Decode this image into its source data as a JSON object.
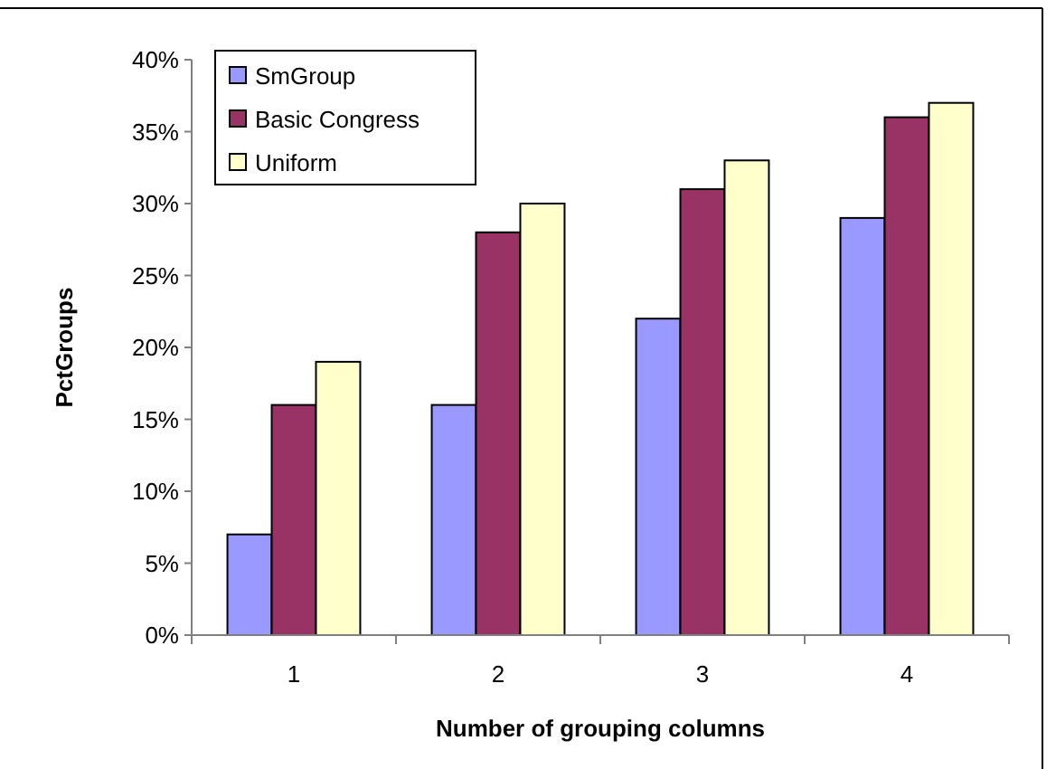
{
  "chart_data": {
    "type": "bar",
    "xlabel": "Number of grouping columns",
    "ylabel": "PctGroups",
    "categories": [
      "1",
      "2",
      "3",
      "4"
    ],
    "series": [
      {
        "name": "SmGroup",
        "color": "#9999ff",
        "values": [
          7,
          16,
          22,
          29
        ]
      },
      {
        "name": "Basic Congress",
        "color": "#993366",
        "values": [
          16,
          28,
          31,
          36
        ]
      },
      {
        "name": "Uniform",
        "color": "#ffffcc",
        "values": [
          19,
          30,
          33,
          37
        ]
      }
    ],
    "ylim": [
      0,
      40
    ],
    "yticks": [
      {
        "value": 0,
        "label": "0%"
      },
      {
        "value": 5,
        "label": "5%"
      },
      {
        "value": 10,
        "label": "10%"
      },
      {
        "value": 15,
        "label": "15%"
      },
      {
        "value": 20,
        "label": "20%"
      },
      {
        "value": 25,
        "label": "25%"
      },
      {
        "value": 30,
        "label": "30%"
      },
      {
        "value": 35,
        "label": "35%"
      },
      {
        "value": 40,
        "label": "40%"
      }
    ],
    "grid": false,
    "legend": "top left"
  }
}
